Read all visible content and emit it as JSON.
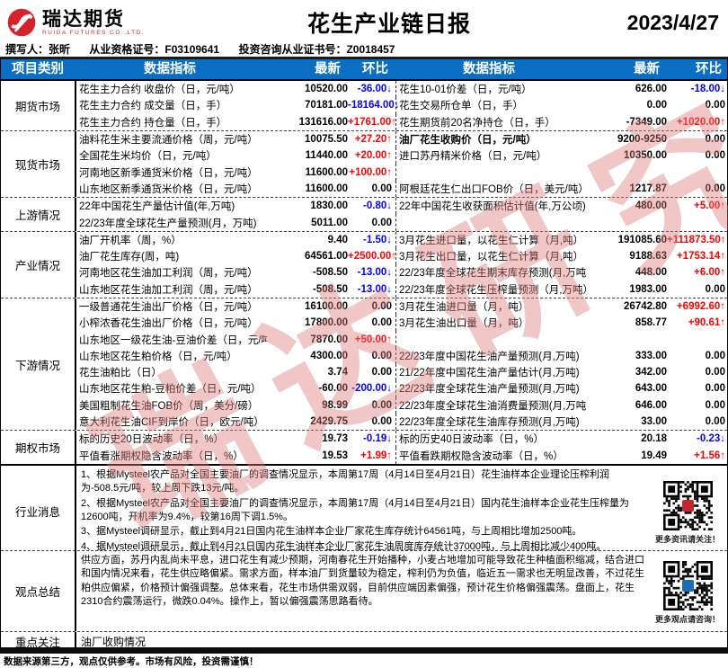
{
  "header": {
    "logo_cn": "瑞达期货",
    "logo_en": "RUIDA FUTURES CO.,LTD.",
    "title": "花生产业链日报",
    "date": "2023/4/27"
  },
  "byline": {
    "author": "撰写人：张昕",
    "cert1": "从业资格证号：F03109641",
    "cert2": "投资咨询从业证书号：Z0018457"
  },
  "table": {
    "headers": {
      "category": "项目类别",
      "indicator": "数据指标",
      "latest": "最新",
      "chg": "环比"
    },
    "sections": [
      {
        "name": "期货市场",
        "rows": [
          {
            "li": "花生主力合约 收盘价（日，元/吨）",
            "lv": "10520.00",
            "lc": "-36.00↓",
            "ld": "down",
            "ri": "花生10-01价差（日，元/吨）",
            "rv": "626.00",
            "rc": "-18.00↓",
            "rd": "down"
          },
          {
            "li": "花生主力合约 成交量（日，手）",
            "lv": "70181.00",
            "lc": "-18164.00↓",
            "ld": "down",
            "ri": "花生交易所仓单（日，手）",
            "rv": "0.00",
            "rc": "0.00",
            "rd": ""
          },
          {
            "li": "花生主力合约 持仓量（日，手）",
            "lv": "131616.00",
            "lc": "+1761.00↑",
            "ld": "up",
            "ri": "花生期货前20名净持仓（日，手）",
            "rv": "-7349.00",
            "rc": "+1020.00↑",
            "rd": "up"
          }
        ]
      },
      {
        "name": "现货市场",
        "rows": [
          {
            "li": "油料花生米主要流通价格（周，元/吨）",
            "lv": "10075.50",
            "lc": "+27.20↑",
            "ld": "up",
            "ri": "油厂花生收购价（日，元/吨）",
            "rv": "9200-9250",
            "rc": "0.00",
            "rd": "",
            "br": true
          },
          {
            "li": "全国花生米均价（日，元/吨）",
            "lv": "11440.00",
            "lc": "+20.00↑",
            "ld": "up",
            "ri": "进口苏丹精米价格（日，元/吨）",
            "rv": "10350.00",
            "rc": "0.00",
            "rd": ""
          },
          {
            "li": "河南地区新季通货米价格（日，元/吨）",
            "lv": "11600.00",
            "lc": "+100.00↑",
            "ld": "up",
            "ri": "",
            "rv": "",
            "rc": "",
            "rd": ""
          },
          {
            "li": "山东地区新季通货米价格（日，元/吨）",
            "lv": "11600.00",
            "lc": "0.00",
            "ld": "",
            "ri": "阿根廷花生仁出口FOB价（日，美元/吨）",
            "rv": "1217.87",
            "rc": "0.00",
            "rd": ""
          }
        ]
      },
      {
        "name": "上游情况",
        "rows": [
          {
            "li": "22年中国花生产量估计值(年,万吨)",
            "lv": "1830.00",
            "lc": "-0.80↓",
            "ld": "down",
            "ri": "22年中国花生收获面积估计值(年,万公顷)",
            "rv": "480.00",
            "rc": "+5.00↑",
            "rd": "up"
          },
          {
            "li": "22/23年度全球花生产量预测(月，万吨)",
            "lv": "5011.00",
            "lc": "0.00",
            "ld": "",
            "ri": "",
            "rv": "",
            "rc": "",
            "rd": ""
          }
        ]
      },
      {
        "name": "产业情况",
        "rows": [
          {
            "li": "油厂开机率（周，%）",
            "lv": "9.40",
            "lc": "-1.50↓",
            "ld": "down",
            "ri": "3月花生进口量，以花生仁计算（月,吨）",
            "rv": "191085.60",
            "rc": "+111873.50↑",
            "rd": "up"
          },
          {
            "li": "油厂花生库存(周，吨)",
            "lv": "64561.00",
            "lc": "+2500.00↑",
            "ld": "up",
            "ri": "3月花生出口量，以花生仁计算（月,吨）",
            "rv": "9188.63",
            "rc": "+1753.14↑",
            "rd": "up"
          },
          {
            "li": "河南地区花生油加工利润（周，元/吨）",
            "lv": "-508.50",
            "lc": "-13.00↓",
            "ld": "down",
            "ri": "22/23年度全球花生期末库存预测(月,万吨)",
            "rv": "448.00",
            "rc": "+6.00↑",
            "rd": "up"
          },
          {
            "li": "山东地区花生油加工利润（周，元/吨）",
            "lv": "-508.50",
            "lc": "-13.00↓",
            "ld": "down",
            "ri": "22/23年度全球花生压榨量预测（月,万吨）",
            "rv": "1983.00",
            "rc": "0.00",
            "rd": ""
          }
        ]
      },
      {
        "name": "下游情况",
        "rows": [
          {
            "li": "一级普通花生油出厂价格（日，元/吨）",
            "lv": "16100.00",
            "lc": "0.00",
            "ld": "",
            "ri": "3月花生油进口量（月，吨）",
            "rv": "26742.80",
            "rc": "+6992.60↑",
            "rd": "up"
          },
          {
            "li": "小榨浓香花生油出厂价格（日，元/吨）",
            "lv": "17800.00",
            "lc": "0.00",
            "ld": "",
            "ri": "3月花生油出口量（月，吨）",
            "rv": "858.77",
            "rc": "+90.61↑",
            "rd": "up"
          },
          {
            "li": "山东地区一级花生油-豆油价差（日，元/吨）",
            "lv": "7870.00",
            "lc": "+50.00↑",
            "ld": "up",
            "ri": "",
            "rv": "",
            "rc": "",
            "rd": ""
          },
          {
            "li": "山东地区花生粕价格（日，元/吨）",
            "lv": "4300.00",
            "lc": "0.00",
            "ld": "",
            "ri": "22/23年度中国花生油产量预测(月,万吨)",
            "rv": "333.00",
            "rc": "0.00",
            "rd": ""
          },
          {
            "li": "花生油粕比（日）",
            "lv": "3.74",
            "lc": "0.00",
            "ld": "",
            "ri": "21/22年度中国花生油产量估计(月,万吨)",
            "rv": "342.00",
            "rc": "0.00",
            "rd": ""
          },
          {
            "li": "山东地区花生粕-豆粕价差（日，元/吨）",
            "lv": "-60.00",
            "lc": "-200.00↓",
            "ld": "down",
            "ri": "22/23年度全球花生油产量预测(月,万吨)",
            "rv": "643.00",
            "rc": "0.00",
            "rd": ""
          },
          {
            "li": "美国粗制花生油FOB价（周，美分/磅）",
            "lv": "98.99",
            "lc": "0.00",
            "ld": "",
            "ri": "22/23年度全球花生油消费量预测(月,万吨)",
            "rv": "646.00",
            "rc": "0.00",
            "rd": ""
          },
          {
            "li": "意大利花生油CIF到岸价（日，欧元/吨）",
            "lv": "2429.75",
            "lc": "0.00",
            "ld": "",
            "ri": "22/23年度全球花生油库存预测(月,万吨)",
            "rv": "33.00",
            "rc": "0.00",
            "rd": ""
          }
        ]
      },
      {
        "name": "期权市场",
        "rows": [
          {
            "li": "标的历史20日波动率（日，%）",
            "lv": "19.73",
            "lc": "-0.19↓",
            "ld": "down",
            "ri": "标的历史40日波动率（日，%）",
            "rv": "20.18",
            "rc": "-0.23↓",
            "rd": "down"
          },
          {
            "li": "平值看涨期权隐含波动率（日，%）",
            "lv": "19.53",
            "lc": "+1.99↑",
            "ld": "up",
            "ri": "平值看跌期权隐含波动率（日，%）",
            "rv": "19.49",
            "rc": "+1.56↑",
            "rd": "up"
          }
        ]
      }
    ],
    "news": {
      "name": "行业消息",
      "lines": [
        "1、根据Mysteel农产品对全国主要油厂的调查情况显示，本周第17周（4月14日至4月21日）花生油样本企业理论压榨利润为-508.5元/吨，较上周下跌13元/吨。",
        "2、根据Mysteel农产品对全国主要油厂的调查情况显示，本周第17周（4月14日至4月21日）国内花生油样本企业花生压榨量为12600吨，开机率为9.4%，较第16周下调1.5%。",
        "3、据Mysteel调研显示，截止到4月21日国内花生油样本企业厂家花生库存统计64561吨，与上周相比增加2500吨。",
        "4、据Mysteel调研显示，截止到4月21日国内花生油样本企业厂家花生油周度库存统计37000吨，与上周相比减少400吨。"
      ],
      "qr_caption": "更多资讯请关注！"
    },
    "summary": {
      "name": "观点总结",
      "text": "供应方面，苏丹内乱尚未平息，进口花生有减少预期，河南春花生开始播种，小麦占地增加可能导致花生种植面积缩减，结合进口和国内情况来看，花生供应略偏紧。需求方面，样本油厂到货量较为稳定，榨利仍为负值，临近五一需求也无明显改善，不过花生粕供应偏紧，价格预计偏强调整。总体来看，花生市场供需双弱，目前供应端因素偏强，预计花生价格偏强震荡。盘面上，花生2310合约震荡运行，微跌0.04%。操作上，暂以偏强震荡思路看待。",
      "qr_caption": "更多观点请咨询！"
    },
    "focus": {
      "name": "重点关注",
      "text": "油厂收购情况"
    }
  },
  "watermark": {
    "text": "瑞达研究"
  },
  "footer": {
    "disclaimer": "数据来源第三方，观点仅供参考。市场有风险，投资需谨慎！"
  },
  "colors": {
    "header_bg": "#0a6fc2",
    "up": "#ff0000",
    "down": "#0000ff",
    "brand_red": "#d4232c"
  }
}
